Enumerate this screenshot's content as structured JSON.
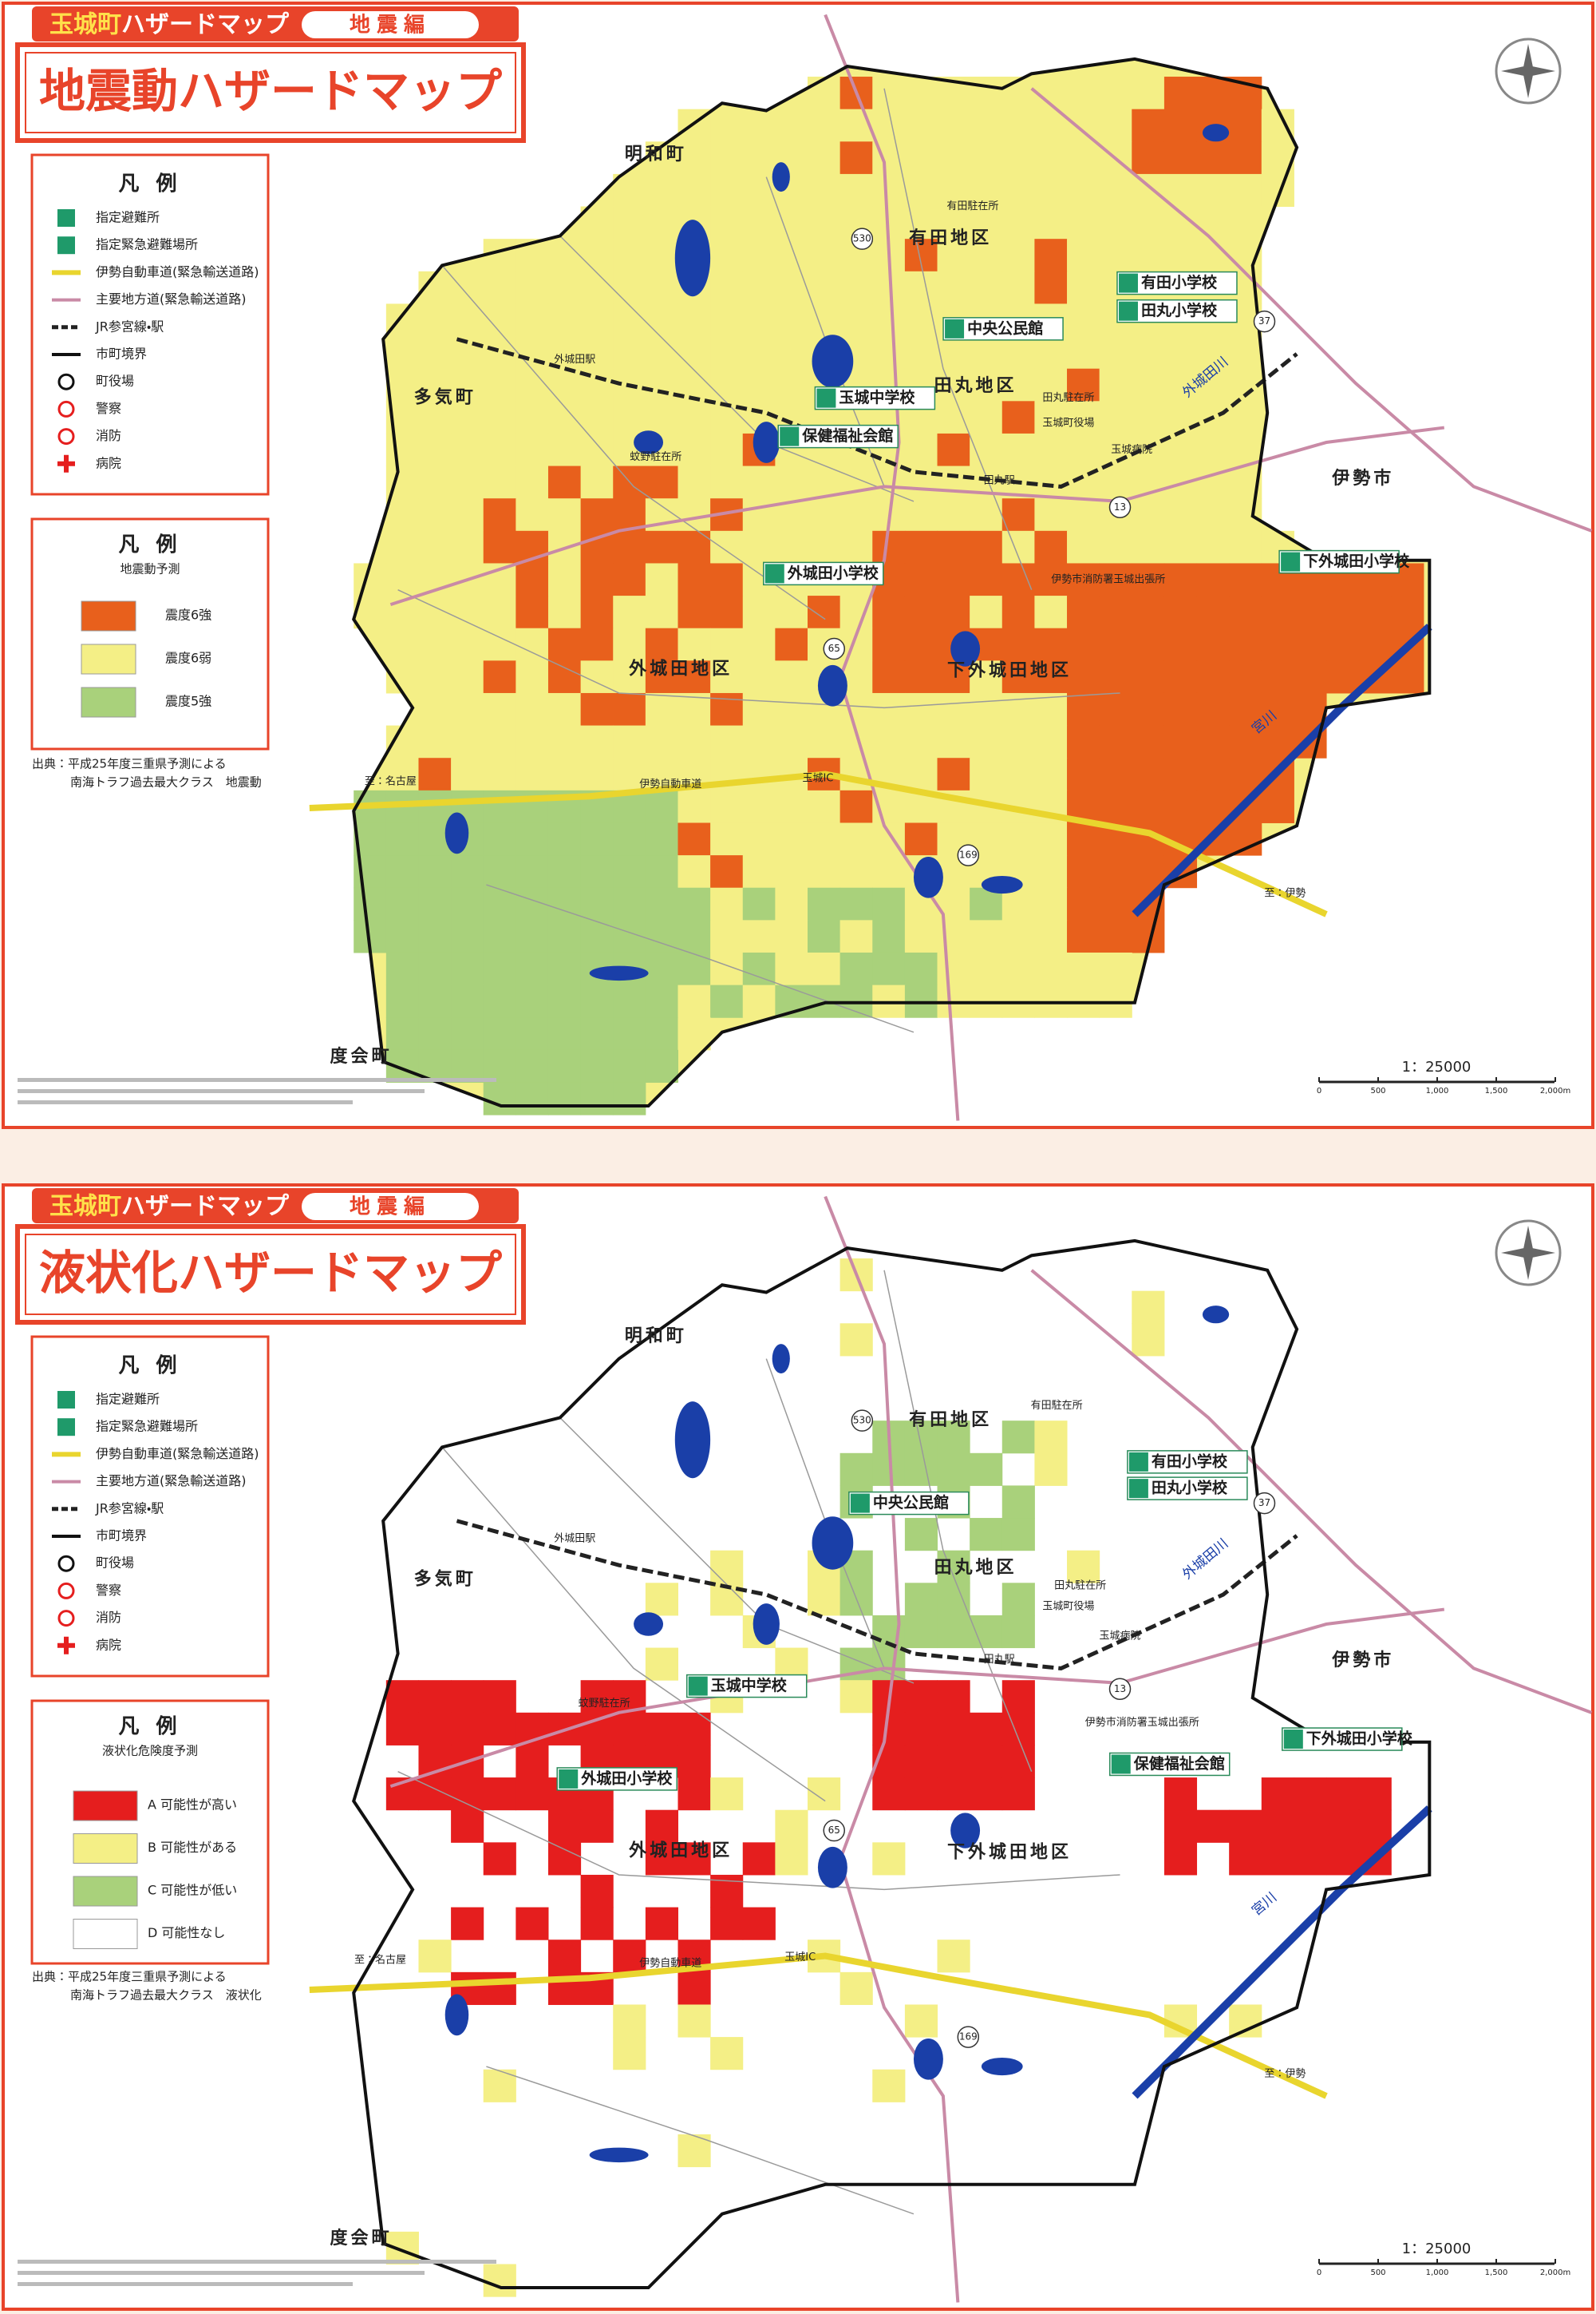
{
  "panels": [
    {
      "header": {
        "town": "玉城町",
        "name": "ハザードマップ",
        "edition": "地震編"
      },
      "title": "地震動ハザードマップ",
      "legend": {
        "title": "凡 例",
        "items": [
          "指定避難所",
          "指定緊急避難場所",
          "伊勢自動車道(緊急輸送道路)",
          "主要地方道(緊急輸送道路)",
          "JR参宮線・駅",
          "市町境界",
          "町役場",
          "警察",
          "消防",
          "病院"
        ]
      },
      "hazard_legend": {
        "title": "凡 例",
        "subtitle": "地震動予測",
        "items": [
          "震度6強",
          "震度6弱",
          "震度5強"
        ]
      },
      "source": [
        "出典：平成25年度三重県予測による",
        "南海トラフ過去最大クラス　地震動"
      ],
      "places": [
        "明和町",
        "多気町",
        "伊勢市",
        "度会町",
        "有田地区",
        "田丸地区",
        "外城田地区",
        "下外城田地区"
      ],
      "facilities": [
        "有田小学校",
        "田丸小学校",
        "中央公民館",
        "玉城中学校",
        "保健福祉会館",
        "外城田小学校",
        "下外城田小学校"
      ],
      "small_labels": [
        "外城田駅",
        "田丸駅",
        "有田駐在所",
        "田丸駐在所",
        "玉城町役場",
        "玉城病院",
        "伊勢市消防署玉城出張所",
        "蚊野駐在所",
        "至：名古屋",
        "至：伊勢",
        "玉城IC",
        "伊勢自動車道",
        "宮川",
        "外城田川"
      ],
      "routes": [
        "530",
        "37",
        "13",
        "65",
        "169"
      ],
      "scale": "1：25000",
      "scale_ticks": [
        "0",
        "500",
        "1,000",
        "1,500",
        "2,000m"
      ]
    },
    {
      "header": {
        "town": "玉城町",
        "name": "ハザードマップ",
        "edition": "地震編"
      },
      "title": "液状化ハザードマップ",
      "legend": {
        "title": "凡 例",
        "items": [
          "指定避難所",
          "指定緊急避難場所",
          "伊勢自動車道(緊急輸送道路)",
          "主要地方道(緊急輸送道路)",
          "JR参宮線・駅",
          "市町境界",
          "町役場",
          "警察",
          "消防",
          "病院"
        ]
      },
      "hazard_legend": {
        "title": "凡 例",
        "subtitle": "液状化危険度予測",
        "items": [
          "A 可能性が高い",
          "B 可能性がある",
          "C 可能性が低い",
          "D 可能性なし"
        ]
      },
      "source": [
        "出典：平成25年度三重県予測による",
        "南海トラフ過去最大クラス　液状化"
      ],
      "places": [
        "明和町",
        "多気町",
        "伊勢市",
        "度会町",
        "有田地区",
        "田丸地区",
        "外城田地区",
        "下外城田地区"
      ],
      "facilities": [
        "有田小学校",
        "田丸小学校",
        "中央公民館",
        "玉城中学校",
        "保健福祉会館",
        "外城田小学校",
        "下外城田小学校"
      ],
      "small_labels": [
        "外城田駅",
        "田丸駅",
        "有田駐在所",
        "田丸駐在所",
        "玉城町役場",
        "玉城病院",
        "伊勢市消防署玉城出張所",
        "蚊野駐在所",
        "至：名古屋",
        "至：伊勢",
        "玉城IC",
        "伊勢自動車道",
        "宮川",
        "外城田川"
      ],
      "routes": [
        "530",
        "37",
        "13",
        "65",
        "169"
      ],
      "scale": "1：25000",
      "scale_ticks": [
        "0",
        "500",
        "1,000",
        "1,500",
        "2,000m"
      ]
    }
  ]
}
